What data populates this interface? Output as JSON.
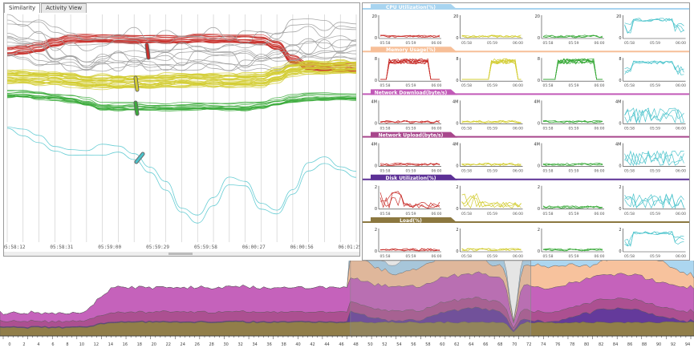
{
  "tabs": [
    {
      "label": "Similarity",
      "active": true
    },
    {
      "label": "Activity View",
      "active": false
    }
  ],
  "parallel": {
    "time_labels": [
      "05:58:12",
      "05:58:31",
      "05:59:00",
      "05:59:29",
      "05:59:58",
      "06:00:27",
      "06:00:56",
      "06:01:25"
    ],
    "groups": [
      {
        "name": "red",
        "color": "#c8302c",
        "count": 18
      },
      {
        "name": "gray",
        "color": "#9a9a9a",
        "count": 12
      },
      {
        "name": "yellow",
        "color": "#d2cc30",
        "count": 30
      },
      {
        "name": "green",
        "color": "#3aaa3a",
        "count": 14
      },
      {
        "name": "cyan",
        "color": "#4cc4cc",
        "count": 2
      }
    ]
  },
  "metrics": [
    {
      "title": "CPU Utilization(%)",
      "color": "#a8d4f0",
      "ymax": [
        "20",
        "20",
        "20",
        "20"
      ]
    },
    {
      "title": "Memory Usage(%)",
      "color": "#f7bf98",
      "ymax": [
        "8",
        "8",
        "8",
        "8"
      ]
    },
    {
      "title": "Network Download(byte/s)",
      "color": "#c25ab8",
      "ymax": [
        "4M",
        "4M",
        "4M",
        "4M"
      ]
    },
    {
      "title": "Network Upload(byte/s)",
      "color": "#a8478c",
      "ymax": [
        "4M",
        "4M",
        "4M",
        "4M"
      ]
    },
    {
      "title": "Disk Utilization(%)",
      "color": "#5c3096",
      "ymax": [
        "2",
        "2",
        "2",
        "2"
      ]
    },
    {
      "title": "Load(%)",
      "color": "#8c7840",
      "ymax": [
        "2",
        "2",
        "2",
        "2"
      ]
    }
  ],
  "small_ticks": [
    "05:58",
    "05:59",
    "06:00"
  ],
  "group_colors": [
    "#c8302c",
    "#d2cc30",
    "#3aaa3a",
    "#4cc4cc"
  ],
  "overview": {
    "colors": [
      "#8c7840",
      "#5c3096",
      "#a8478c",
      "#c25ab8",
      "#f7bf98",
      "#a8d4f0"
    ],
    "selection": {
      "start": 0.505,
      "end": 0.765
    }
  }
}
